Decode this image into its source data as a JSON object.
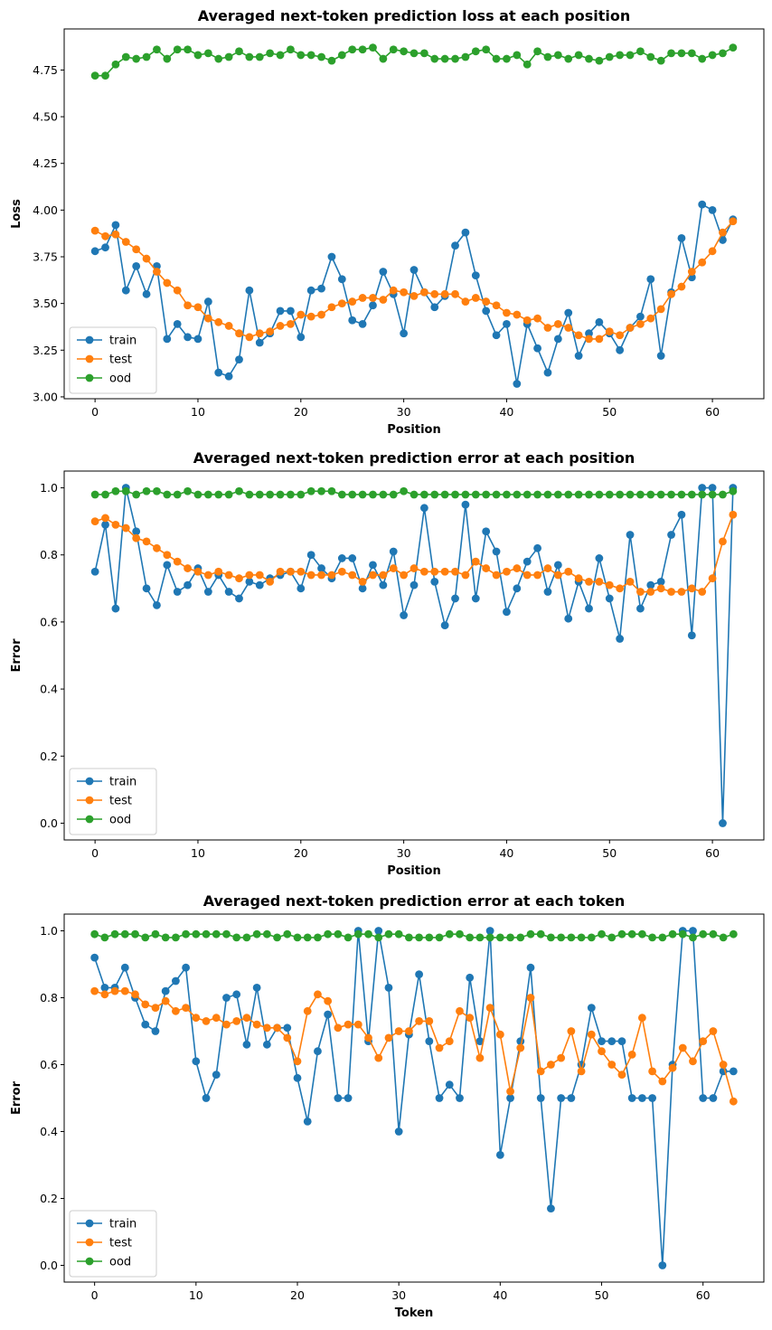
{
  "chart_data": [
    {
      "type": "line",
      "title": "Averaged next-token prediction loss at each position",
      "xlabel": "Position",
      "ylabel": "Loss",
      "xlim": [
        -3,
        65
      ],
      "ylim": [
        2.99,
        4.97
      ],
      "xticks": [
        0,
        10,
        20,
        30,
        40,
        50,
        60
      ],
      "yticks": [
        3.0,
        3.25,
        3.5,
        3.75,
        4.0,
        4.25,
        4.5,
        4.75
      ],
      "ytick_labels": [
        "3.00",
        "3.25",
        "3.50",
        "3.75",
        "4.00",
        "4.25",
        "4.50",
        "4.75"
      ],
      "legend_position": "lower-left",
      "series": [
        {
          "name": "train",
          "color": "#1f77b4",
          "values": [
            3.78,
            3.8,
            3.92,
            3.57,
            3.7,
            3.55,
            3.7,
            3.31,
            3.39,
            3.32,
            3.31,
            3.51,
            3.13,
            3.11,
            3.2,
            3.57,
            3.29,
            3.34,
            3.46,
            3.46,
            3.32,
            3.57,
            3.58,
            3.75,
            3.63,
            3.41,
            3.39,
            3.49,
            3.67,
            3.55,
            3.34,
            3.68,
            3.56,
            3.48,
            3.54,
            3.81,
            3.88,
            3.65,
            3.46,
            3.33,
            3.39,
            3.07,
            3.39,
            3.26,
            3.13,
            3.31,
            3.45,
            3.22,
            3.34,
            3.4,
            3.34,
            3.25,
            3.37,
            3.43,
            3.63,
            3.22,
            3.56,
            3.85,
            3.64,
            4.03,
            4.0,
            3.84,
            3.95
          ]
        },
        {
          "name": "test",
          "color": "#ff7f0e",
          "values": [
            3.89,
            3.86,
            3.87,
            3.83,
            3.79,
            3.74,
            3.67,
            3.61,
            3.57,
            3.49,
            3.48,
            3.42,
            3.4,
            3.38,
            3.34,
            3.32,
            3.34,
            3.35,
            3.38,
            3.39,
            3.44,
            3.43,
            3.44,
            3.48,
            3.5,
            3.51,
            3.53,
            3.53,
            3.52,
            3.57,
            3.56,
            3.54,
            3.56,
            3.55,
            3.55,
            3.55,
            3.51,
            3.53,
            3.51,
            3.49,
            3.45,
            3.44,
            3.41,
            3.42,
            3.37,
            3.39,
            3.37,
            3.33,
            3.31,
            3.31,
            3.35,
            3.33,
            3.37,
            3.39,
            3.42,
            3.47,
            3.55,
            3.59,
            3.67,
            3.72,
            3.78,
            3.88,
            3.94
          ]
        },
        {
          "name": "ood",
          "color": "#2ca02c",
          "values": [
            4.72,
            4.72,
            4.78,
            4.82,
            4.81,
            4.82,
            4.86,
            4.81,
            4.86,
            4.86,
            4.83,
            4.84,
            4.81,
            4.82,
            4.85,
            4.82,
            4.82,
            4.84,
            4.83,
            4.86,
            4.83,
            4.83,
            4.82,
            4.8,
            4.83,
            4.86,
            4.86,
            4.87,
            4.81,
            4.86,
            4.85,
            4.84,
            4.84,
            4.81,
            4.81,
            4.81,
            4.82,
            4.85,
            4.86,
            4.81,
            4.81,
            4.83,
            4.78,
            4.85,
            4.82,
            4.83,
            4.81,
            4.83,
            4.81,
            4.8,
            4.82,
            4.83,
            4.83,
            4.85,
            4.82,
            4.8,
            4.84,
            4.84,
            4.84,
            4.81,
            4.83,
            4.84,
            4.87
          ]
        }
      ]
    },
    {
      "type": "line",
      "title": "Averaged next-token prediction error at each position",
      "xlabel": "Position",
      "ylabel": "Error",
      "xlim": [
        -3,
        65
      ],
      "ylim": [
        -0.05,
        1.05
      ],
      "xticks": [
        0,
        10,
        20,
        30,
        40,
        50,
        60
      ],
      "yticks": [
        0.0,
        0.2,
        0.4,
        0.6,
        0.8,
        1.0
      ],
      "ytick_labels": [
        "0.0",
        "0.2",
        "0.4",
        "0.6",
        "0.8",
        "1.0"
      ],
      "legend_position": "lower-left",
      "series": [
        {
          "name": "train",
          "color": "#1f77b4",
          "values": [
            0.75,
            0.89,
            0.64,
            1.0,
            0.87,
            0.7,
            0.65,
            0.77,
            0.69,
            0.71,
            0.76,
            0.69,
            0.74,
            0.69,
            0.67,
            0.72,
            0.71,
            0.73,
            0.74,
            0.75,
            0.7,
            0.8,
            0.76,
            0.73,
            0.79,
            0.79,
            0.7,
            0.77,
            0.71,
            0.81,
            0.62,
            0.71,
            0.94,
            0.72,
            0.59,
            0.67,
            0.95,
            0.67,
            0.87,
            0.81,
            0.63,
            0.7,
            0.78,
            0.82,
            0.69,
            0.77,
            0.61,
            0.72,
            0.64,
            0.79,
            0.67,
            0.55,
            0.86,
            0.64,
            0.71,
            0.72,
            0.86,
            0.92,
            0.56,
            1.0,
            1.0,
            0.0,
            1.0
          ]
        },
        {
          "name": "test",
          "color": "#ff7f0e",
          "values": [
            0.9,
            0.91,
            0.89,
            0.88,
            0.85,
            0.84,
            0.82,
            0.8,
            0.78,
            0.76,
            0.75,
            0.74,
            0.75,
            0.74,
            0.73,
            0.74,
            0.74,
            0.72,
            0.75,
            0.75,
            0.75,
            0.74,
            0.74,
            0.74,
            0.75,
            0.74,
            0.72,
            0.74,
            0.74,
            0.76,
            0.74,
            0.76,
            0.75,
            0.75,
            0.75,
            0.75,
            0.74,
            0.78,
            0.76,
            0.74,
            0.75,
            0.76,
            0.74,
            0.74,
            0.76,
            0.74,
            0.75,
            0.73,
            0.72,
            0.72,
            0.71,
            0.7,
            0.72,
            0.69,
            0.69,
            0.7,
            0.69,
            0.69,
            0.7,
            0.69,
            0.73,
            0.84,
            0.92
          ]
        },
        {
          "name": "ood",
          "color": "#2ca02c",
          "values": [
            0.98,
            0.98,
            0.99,
            0.99,
            0.98,
            0.99,
            0.99,
            0.98,
            0.98,
            0.99,
            0.98,
            0.98,
            0.98,
            0.98,
            0.99,
            0.98,
            0.98,
            0.98,
            0.98,
            0.98,
            0.98,
            0.99,
            0.99,
            0.99,
            0.98,
            0.98,
            0.98,
            0.98,
            0.98,
            0.98,
            0.99,
            0.98,
            0.98,
            0.98,
            0.98,
            0.98,
            0.98,
            0.98,
            0.98,
            0.98,
            0.98,
            0.98,
            0.98,
            0.98,
            0.98,
            0.98,
            0.98,
            0.98,
            0.98,
            0.98,
            0.98,
            0.98,
            0.98,
            0.98,
            0.98,
            0.98,
            0.98,
            0.98,
            0.98,
            0.98,
            0.98,
            0.98,
            0.99
          ]
        }
      ]
    },
    {
      "type": "line",
      "title": "Averaged next-token prediction error at each token",
      "xlabel": "Token",
      "ylabel": "Error",
      "xlim": [
        -3,
        66
      ],
      "ylim": [
        -0.05,
        1.05
      ],
      "xticks": [
        0,
        10,
        20,
        30,
        40,
        50,
        60
      ],
      "yticks": [
        0.0,
        0.2,
        0.4,
        0.6,
        0.8,
        1.0
      ],
      "ytick_labels": [
        "0.0",
        "0.2",
        "0.4",
        "0.6",
        "0.8",
        "1.0"
      ],
      "legend_position": "lower-left",
      "series": [
        {
          "name": "train",
          "color": "#1f77b4",
          "values": [
            0.92,
            0.83,
            0.83,
            0.89,
            0.8,
            0.72,
            0.7,
            0.82,
            0.85,
            0.89,
            0.61,
            0.5,
            0.57,
            0.8,
            0.81,
            0.66,
            0.83,
            0.66,
            0.71,
            0.71,
            0.56,
            0.43,
            0.64,
            0.75,
            0.5,
            0.5,
            1.0,
            0.67,
            1.0,
            0.83,
            0.4,
            0.69,
            0.87,
            0.67,
            0.5,
            0.54,
            0.5,
            0.86,
            0.67,
            1.0,
            0.33,
            0.5,
            0.67,
            0.89,
            0.5,
            0.17,
            0.5,
            0.5,
            0.6,
            0.77,
            0.67,
            0.67,
            0.67,
            0.5,
            0.5,
            0.5,
            0.0,
            0.6,
            1.0,
            1.0,
            0.5,
            0.5,
            0.58,
            0.58
          ]
        },
        {
          "name": "test",
          "color": "#ff7f0e",
          "values": [
            0.82,
            0.81,
            0.82,
            0.82,
            0.81,
            0.78,
            0.77,
            0.79,
            0.76,
            0.77,
            0.74,
            0.73,
            0.74,
            0.72,
            0.73,
            0.74,
            0.72,
            0.71,
            0.71,
            0.68,
            0.61,
            0.76,
            0.81,
            0.79,
            0.71,
            0.72,
            0.72,
            0.68,
            0.62,
            0.68,
            0.7,
            0.7,
            0.73,
            0.73,
            0.65,
            0.67,
            0.76,
            0.74,
            0.62,
            0.77,
            0.69,
            0.52,
            0.65,
            0.8,
            0.58,
            0.6,
            0.62,
            0.7,
            0.58,
            0.69,
            0.64,
            0.6,
            0.57,
            0.63,
            0.74,
            0.58,
            0.55,
            0.59,
            0.65,
            0.61,
            0.67,
            0.7,
            0.6,
            0.49
          ]
        },
        {
          "name": "ood",
          "color": "#2ca02c",
          "values": [
            0.99,
            0.98,
            0.99,
            0.99,
            0.99,
            0.98,
            0.99,
            0.98,
            0.98,
            0.99,
            0.99,
            0.99,
            0.99,
            0.99,
            0.98,
            0.98,
            0.99,
            0.99,
            0.98,
            0.99,
            0.98,
            0.98,
            0.98,
            0.99,
            0.99,
            0.98,
            0.99,
            0.99,
            0.98,
            0.99,
            0.99,
            0.98,
            0.98,
            0.98,
            0.98,
            0.99,
            0.99,
            0.98,
            0.98,
            0.98,
            0.98,
            0.98,
            0.98,
            0.99,
            0.99,
            0.98,
            0.98,
            0.98,
            0.98,
            0.98,
            0.99,
            0.98,
            0.99,
            0.99,
            0.99,
            0.98,
            0.98,
            0.99,
            0.99,
            0.98,
            0.99,
            0.99,
            0.98,
            0.99
          ]
        }
      ]
    }
  ]
}
